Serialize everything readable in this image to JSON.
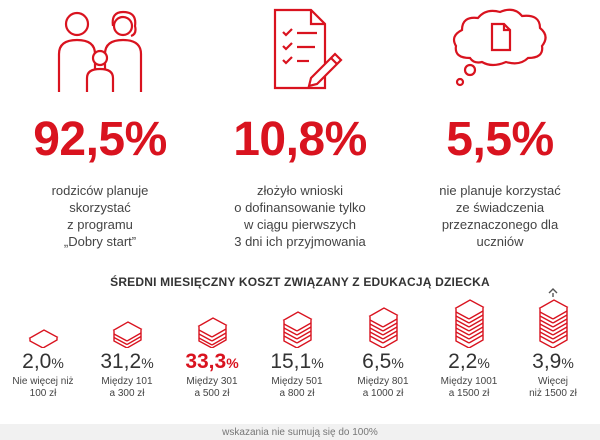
{
  "stats": [
    {
      "value": "92,5%",
      "icon": "family-icon",
      "lines": [
        "rodziców planuje",
        "skorzystać",
        "z programu",
        "„Dobry start”"
      ]
    },
    {
      "value": "10,8%",
      "icon": "application-form-icon",
      "lines": [
        "złożyło wnioski",
        "o dofinansowanie tylko",
        "w ciągu pierwszych",
        "3 dni ich przyjmowania"
      ]
    },
    {
      "value": "5,5%",
      "icon": "thought-bubble-document-icon",
      "lines": [
        "nie planuje korzystać",
        "ze świadczenia",
        "przeznaczonego dla",
        "uczniów"
      ]
    }
  ],
  "section_title": "ŚREDNI MIESIĘCZNY KOSZT ZWIĄZANY Z EDUKACJĄ DZIECKA",
  "costs": [
    {
      "number": "2,0",
      "symbol": "%",
      "range_lines": [
        "Nie więcej niż",
        "100 zł"
      ],
      "highlight": false
    },
    {
      "number": "31,2",
      "symbol": "%",
      "range_lines": [
        "Między 101",
        "a 300 zł"
      ],
      "highlight": false
    },
    {
      "number": "33,3",
      "symbol": "%",
      "range_lines": [
        "Między 301",
        "a 500 zł"
      ],
      "highlight": true
    },
    {
      "number": "15,1",
      "symbol": "%",
      "range_lines": [
        "Między 501",
        "a 800 zł"
      ],
      "highlight": false
    },
    {
      "number": "6,5",
      "symbol": "%",
      "range_lines": [
        "Między 801",
        "a 1000 zł"
      ],
      "highlight": false
    },
    {
      "number": "2,2",
      "symbol": "%",
      "range_lines": [
        "Między 1001",
        "a 1500 zł"
      ],
      "highlight": false
    },
    {
      "number": "3,9",
      "symbol": "%",
      "range_lines": [
        "Więcej",
        "niż 1500 zł"
      ],
      "highlight": false
    }
  ],
  "footnote": "wskazania nie sumują się do 100%",
  "colors": {
    "accent": "#d9131f",
    "text": "#333333"
  }
}
